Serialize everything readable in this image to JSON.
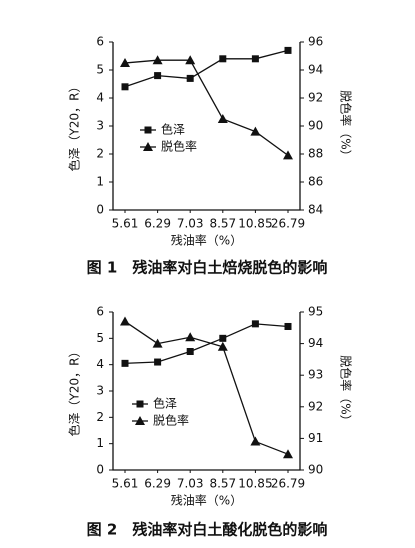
{
  "chart_data": [
    {
      "type": "line",
      "caption": "图 1　残油率对白土焙烧脱色的影响",
      "x_label": "残油率（%）",
      "y_label": "色泽（Y20，R）",
      "y2_label": "脱色率（%）",
      "categories": [
        "5.61",
        "6.29",
        "7.03",
        "8.57",
        "10.85",
        "26.79"
      ],
      "ylim": [
        0,
        6
      ],
      "yticks": [
        0,
        1,
        2,
        3,
        4,
        5,
        6
      ],
      "y2lim": [
        84,
        96
      ],
      "y2ticks": [
        84,
        86,
        88,
        90,
        92,
        94,
        96
      ],
      "series": [
        {
          "name": "色泽",
          "color": "#111111",
          "marker": "square",
          "values": [
            4.4,
            4.8,
            4.7,
            5.4,
            5.4,
            5.7
          ]
        },
        {
          "name": "脱色率",
          "color": "#111111",
          "marker": "triangle",
          "axis": "y2",
          "values": [
            94.5,
            94.7,
            94.7,
            90.5,
            89.6,
            87.9
          ]
        }
      ]
    },
    {
      "type": "line",
      "caption": "图 2　残油率对白土酸化脱色的影响",
      "x_label": "残油率（%）",
      "y_label": "色泽（Y20，R）",
      "y2_label": "脱色率（%）",
      "categories": [
        "5.61",
        "6.29",
        "7.03",
        "8.57",
        "10.85",
        "26.79"
      ],
      "ylim": [
        0,
        6
      ],
      "yticks": [
        0,
        1,
        2,
        3,
        4,
        5,
        6
      ],
      "y2lim": [
        90,
        95
      ],
      "y2ticks": [
        90,
        91,
        92,
        93,
        94,
        95
      ],
      "series": [
        {
          "name": "色泽",
          "color": "#111111",
          "marker": "square",
          "values": [
            4.05,
            4.1,
            4.5,
            5.0,
            5.55,
            5.45
          ]
        },
        {
          "name": "脱色率",
          "color": "#111111",
          "marker": "triangle",
          "axis": "y2",
          "values": [
            94.7,
            94.0,
            94.2,
            93.9,
            90.9,
            90.5
          ]
        }
      ]
    }
  ]
}
